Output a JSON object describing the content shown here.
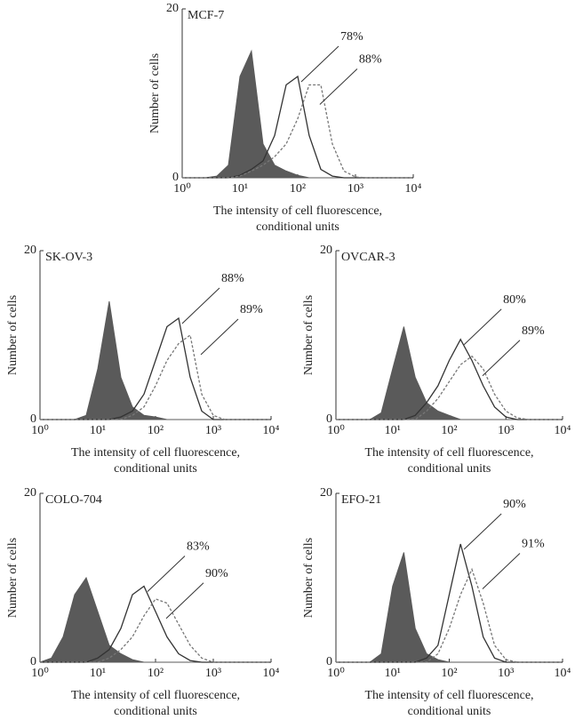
{
  "chart_data": [
    {
      "type": "line",
      "title": "MCF-7",
      "ylabel": "Number of cells",
      "xlabel": [
        "The intensity of cell fluorescence,",
        "conditional units"
      ],
      "log_x": true,
      "xlim": [
        1,
        10000
      ],
      "ylim": [
        0,
        20
      ],
      "xticks": [
        {
          "value": 1,
          "label": "10⁰"
        },
        {
          "value": 10,
          "label": "10¹"
        },
        {
          "value": 100,
          "label": "10²"
        },
        {
          "value": 1000,
          "label": "10³"
        },
        {
          "value": 10000,
          "label": "10⁴"
        }
      ],
      "yticks": [
        0,
        20
      ],
      "x": [
        1,
        1.58,
        2.51,
        3.98,
        6.31,
        10,
        15.8,
        25.1,
        39.8,
        63.1,
        100,
        158,
        251,
        398,
        631,
        1000,
        1585,
        2512,
        3981,
        6310,
        10000
      ],
      "series": [
        {
          "color": "#5a5a5a",
          "filled": true,
          "values": [
            0,
            0,
            0,
            0.2,
            1.5,
            12,
            15,
            4,
            1.5,
            0.8,
            0.3,
            0,
            0,
            0,
            0,
            0,
            0,
            0,
            0,
            0,
            0
          ]
        },
        {
          "color": "#333333",
          "annotation": "78%",
          "values": [
            0,
            0,
            0,
            0,
            0,
            0.3,
            1,
            2,
            5,
            11,
            12,
            5,
            1,
            0.2,
            0,
            0,
            0,
            0,
            0,
            0,
            0
          ]
        },
        {
          "color": "#777777",
          "dashed": true,
          "annotation": "88%",
          "values": [
            0,
            0,
            0,
            0,
            0,
            0.2,
            0.8,
            1.5,
            2.5,
            4,
            7,
            11,
            11,
            4,
            0.8,
            0.1,
            0,
            0,
            0,
            0,
            0
          ]
        }
      ]
    },
    {
      "type": "line",
      "title": "SK-OV-3",
      "ylabel": "Number of cells",
      "xlabel": [
        "The intensity of cell fluorescence,",
        "conditional units"
      ],
      "log_x": true,
      "xlim": [
        1,
        10000
      ],
      "ylim": [
        0,
        20
      ],
      "xticks": [
        {
          "value": 1,
          "label": "10⁰"
        },
        {
          "value": 10,
          "label": "10¹"
        },
        {
          "value": 100,
          "label": "10²"
        },
        {
          "value": 1000,
          "label": "10³"
        },
        {
          "value": 10000,
          "label": "10⁴"
        }
      ],
      "yticks": [
        0,
        20
      ],
      "x": [
        1,
        1.58,
        2.51,
        3.98,
        6.31,
        10,
        15.8,
        25.1,
        39.8,
        63.1,
        100,
        158,
        251,
        398,
        631,
        1000,
        1585,
        2512,
        3981,
        6310,
        10000
      ],
      "series": [
        {
          "color": "#5a5a5a",
          "filled": true,
          "values": [
            0,
            0,
            0,
            0,
            0.5,
            6,
            14,
            5,
            1.5,
            0.5,
            0.3,
            0,
            0,
            0,
            0,
            0,
            0,
            0,
            0,
            0,
            0
          ]
        },
        {
          "color": "#333333",
          "annotation": "88%",
          "values": [
            0,
            0,
            0,
            0,
            0,
            0,
            0,
            0.3,
            1,
            3,
            7,
            11,
            12,
            5,
            1,
            0,
            0,
            0,
            0,
            0,
            0
          ]
        },
        {
          "color": "#777777",
          "dashed": true,
          "annotation": "89%",
          "values": [
            0,
            0,
            0,
            0,
            0,
            0,
            0,
            0,
            0.5,
            1.5,
            4,
            7,
            9,
            10,
            3,
            0.5,
            0,
            0,
            0,
            0,
            0
          ]
        }
      ]
    },
    {
      "type": "line",
      "title": "OVCAR-3",
      "ylabel": "Number of cells",
      "xlabel": [
        "The intensity of cell fluorescence,",
        "conditional units"
      ],
      "log_x": true,
      "xlim": [
        1,
        10000
      ],
      "ylim": [
        0,
        20
      ],
      "xticks": [
        {
          "value": 1,
          "label": "10⁰"
        },
        {
          "value": 10,
          "label": "10¹"
        },
        {
          "value": 100,
          "label": "10²"
        },
        {
          "value": 1000,
          "label": "10³"
        },
        {
          "value": 10000,
          "label": "10⁴"
        }
      ],
      "yticks": [
        0,
        20
      ],
      "x": [
        1,
        1.58,
        2.51,
        3.98,
        6.31,
        10,
        15.8,
        25.1,
        39.8,
        63.1,
        100,
        158,
        251,
        398,
        631,
        1000,
        1585,
        2512,
        3981,
        6310,
        10000
      ],
      "series": [
        {
          "color": "#5a5a5a",
          "filled": true,
          "values": [
            0,
            0,
            0,
            0,
            0.8,
            6,
            11,
            5,
            2,
            1,
            0.5,
            0,
            0,
            0,
            0,
            0,
            0,
            0,
            0,
            0,
            0
          ]
        },
        {
          "color": "#333333",
          "annotation": "80%",
          "values": [
            0,
            0,
            0,
            0,
            0,
            0,
            0,
            0.5,
            2,
            4,
            7,
            9.5,
            7,
            4,
            1.5,
            0.3,
            0,
            0,
            0,
            0,
            0
          ]
        },
        {
          "color": "#777777",
          "dashed": true,
          "annotation": "89%",
          "values": [
            0,
            0,
            0,
            0,
            0,
            0,
            0,
            0,
            1,
            2.5,
            4.5,
            6.5,
            7.5,
            6,
            3,
            1,
            0.2,
            0,
            0,
            0,
            0
          ]
        }
      ]
    },
    {
      "type": "line",
      "title": "COLO-704",
      "ylabel": "Number of cells",
      "xlabel": [
        "The intensity of cell fluorescence,",
        "conditional units"
      ],
      "log_x": true,
      "xlim": [
        1,
        10000
      ],
      "ylim": [
        0,
        20
      ],
      "xticks": [
        {
          "value": 1,
          "label": "10⁰"
        },
        {
          "value": 10,
          "label": "10¹"
        },
        {
          "value": 100,
          "label": "10²"
        },
        {
          "value": 1000,
          "label": "10³"
        },
        {
          "value": 10000,
          "label": "10⁴"
        }
      ],
      "yticks": [
        0,
        20
      ],
      "x": [
        1,
        1.58,
        2.51,
        3.98,
        6.31,
        10,
        15.8,
        25.1,
        39.8,
        63.1,
        100,
        158,
        251,
        398,
        631,
        1000,
        1585,
        2512,
        3981,
        6310,
        10000
      ],
      "series": [
        {
          "color": "#5a5a5a",
          "filled": true,
          "values": [
            0,
            0.5,
            3,
            8,
            10,
            6,
            2,
            1,
            0.3,
            0,
            0,
            0,
            0,
            0,
            0,
            0,
            0,
            0,
            0,
            0,
            0
          ]
        },
        {
          "color": "#333333",
          "annotation": "83%",
          "values": [
            0,
            0,
            0,
            0,
            0,
            0.5,
            1.5,
            4,
            8,
            9,
            6,
            3,
            1,
            0.2,
            0,
            0,
            0,
            0,
            0,
            0,
            0
          ]
        },
        {
          "color": "#777777",
          "dashed": true,
          "annotation": "90%",
          "values": [
            0,
            0,
            0,
            0,
            0,
            0,
            0.5,
            1.5,
            3,
            5.5,
            7.5,
            7,
            4.5,
            2,
            0.5,
            0,
            0,
            0,
            0,
            0,
            0
          ]
        }
      ]
    },
    {
      "type": "line",
      "title": "EFO-21",
      "ylabel": "Number of cells",
      "xlabel": [
        "The intensity of cell fluorescence,",
        "conditional units"
      ],
      "log_x": true,
      "xlim": [
        1,
        10000
      ],
      "ylim": [
        0,
        20
      ],
      "xticks": [
        {
          "value": 1,
          "label": "10⁰"
        },
        {
          "value": 10,
          "label": "10¹"
        },
        {
          "value": 100,
          "label": "10²"
        },
        {
          "value": 1000,
          "label": "10³"
        },
        {
          "value": 10000,
          "label": "10⁴"
        }
      ],
      "yticks": [
        0,
        20
      ],
      "x": [
        1,
        1.58,
        2.51,
        3.98,
        6.31,
        10,
        15.8,
        25.1,
        39.8,
        63.1,
        100,
        158,
        251,
        398,
        631,
        1000,
        1585,
        2512,
        3981,
        6310,
        10000
      ],
      "series": [
        {
          "color": "#5a5a5a",
          "filled": true,
          "values": [
            0,
            0,
            0,
            0,
            1,
            9,
            13,
            4,
            1,
            0.3,
            0,
            0,
            0,
            0,
            0,
            0,
            0,
            0,
            0,
            0,
            0
          ]
        },
        {
          "color": "#333333",
          "annotation": "90%",
          "values": [
            0,
            0,
            0,
            0,
            0,
            0,
            0,
            0,
            0.5,
            2,
            8,
            14,
            9,
            3,
            0.5,
            0,
            0,
            0,
            0,
            0,
            0
          ]
        },
        {
          "color": "#777777",
          "dashed": true,
          "annotation": "91%",
          "values": [
            0,
            0,
            0,
            0,
            0,
            0,
            0,
            0,
            0,
            1,
            4,
            8,
            11,
            7,
            2,
            0.3,
            0,
            0,
            0,
            0,
            0
          ]
        }
      ]
    }
  ]
}
